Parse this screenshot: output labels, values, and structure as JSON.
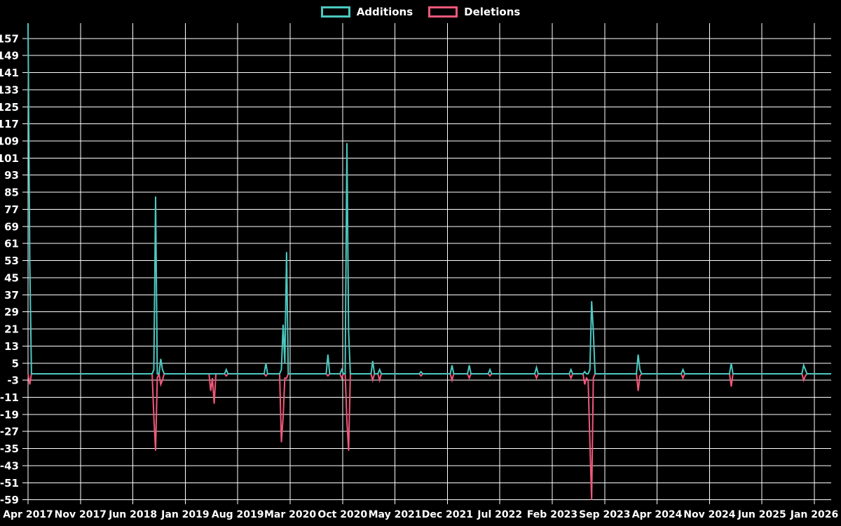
{
  "chart_data": {
    "type": "line",
    "title": "",
    "legend": {
      "position": "top",
      "entries": [
        "Additions",
        "Deletions"
      ]
    },
    "background_color": "#000000",
    "grid_color": "#ffffff",
    "text_color": "#ffffff",
    "grid": true,
    "series": [
      {
        "name": "Additions",
        "color": "#4cc8c0"
      },
      {
        "name": "Deletions",
        "color": "#f0587a"
      }
    ],
    "x_axis": {
      "tick_labels": [
        "Apr 2017",
        "Nov 2017",
        "Jun 2018",
        "Jan 2019",
        "Aug 2019",
        "Mar 2020",
        "Oct 2020",
        "May 2021",
        "Dec 2021",
        "Jul 2022",
        "Feb 2023",
        "Sep 2023",
        "Apr 2024",
        "Nov 2024",
        "Jun 2025",
        "Jan 2026"
      ],
      "unit": "week_index",
      "total_weeks": 466
    },
    "y_axis": {
      "ticks": [
        157,
        149,
        141,
        133,
        125,
        117,
        109,
        101,
        93,
        85,
        77,
        69,
        61,
        53,
        45,
        37,
        29,
        21,
        13,
        5,
        -3,
        -11,
        -19,
        -27,
        -35,
        -43,
        -51,
        -59
      ],
      "step": 8,
      "min": -59,
      "max": 164
    },
    "default_value": 0,
    "points_format": [
      "week_index",
      "additions",
      "deletions"
    ],
    "points": [
      [
        0,
        164,
        0
      ],
      [
        1,
        52,
        -5
      ],
      [
        73,
        2,
        -20
      ],
      [
        74,
        83,
        -36
      ],
      [
        75,
        0,
        -2
      ],
      [
        77,
        7,
        -5
      ],
      [
        78,
        2,
        -3
      ],
      [
        106,
        0,
        -8
      ],
      [
        107,
        0,
        -2
      ],
      [
        108,
        0,
        -14
      ],
      [
        115,
        2,
        -1
      ],
      [
        138,
        5,
        -1
      ],
      [
        147,
        2,
        -32
      ],
      [
        148,
        23,
        -20
      ],
      [
        149,
        5,
        -2
      ],
      [
        150,
        57,
        -2
      ],
      [
        174,
        9,
        -1
      ],
      [
        182,
        2,
        -2
      ],
      [
        185,
        108,
        -22
      ],
      [
        186,
        20,
        -36
      ],
      [
        200,
        6,
        -3
      ],
      [
        204,
        2,
        -3
      ],
      [
        228,
        1,
        -1
      ],
      [
        246,
        4,
        -3
      ],
      [
        256,
        4,
        -2
      ],
      [
        268,
        2,
        -1
      ],
      [
        295,
        3,
        -2
      ],
      [
        315,
        2,
        -2
      ],
      [
        323,
        1,
        -5
      ],
      [
        324,
        0,
        -2
      ],
      [
        325,
        0,
        -3
      ],
      [
        326,
        2,
        -32
      ],
      [
        327,
        34,
        -59
      ],
      [
        328,
        20,
        -2
      ],
      [
        354,
        9,
        -8
      ],
      [
        355,
        2,
        -1
      ],
      [
        380,
        2,
        -2
      ],
      [
        408,
        5,
        -6
      ],
      [
        450,
        4,
        -3
      ],
      [
        451,
        2,
        -1
      ]
    ]
  }
}
